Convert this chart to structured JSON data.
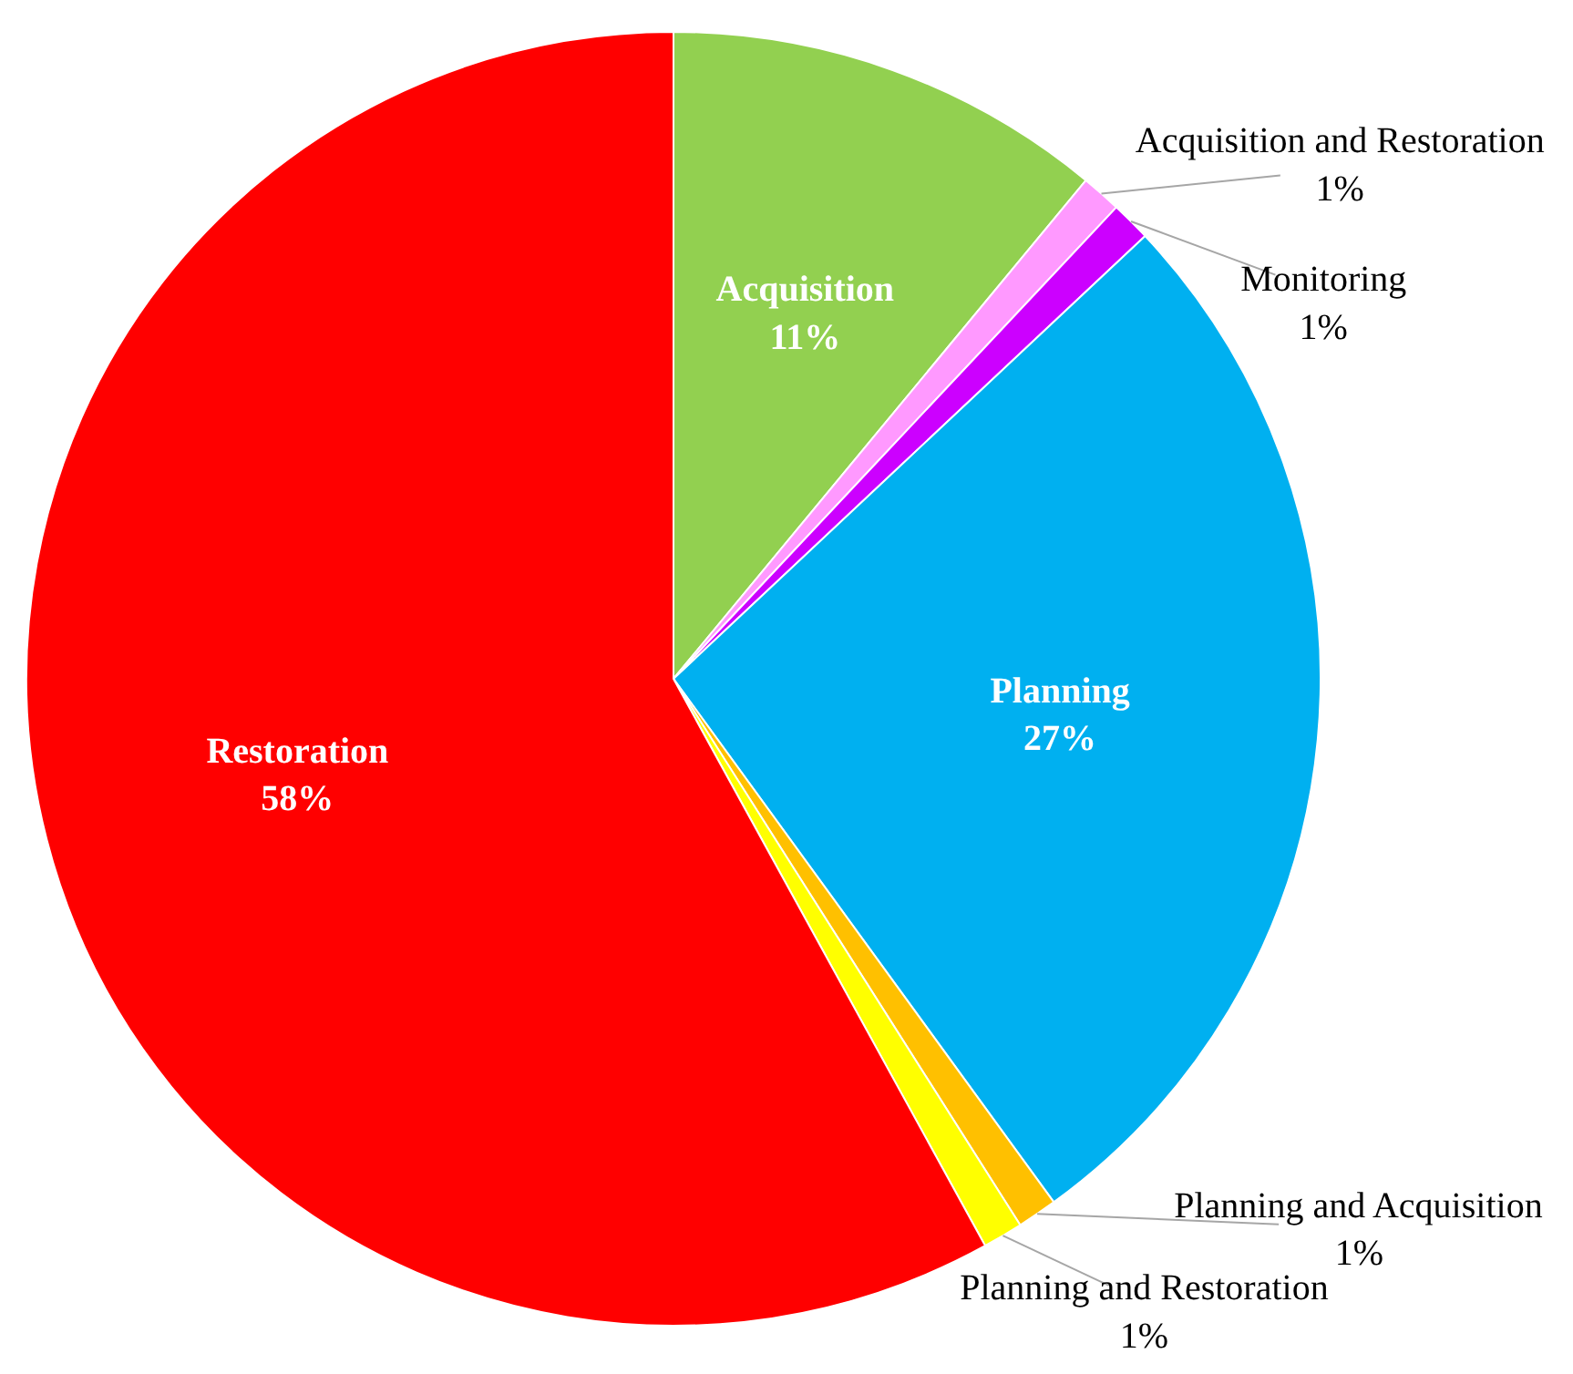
{
  "chart_data": {
    "type": "pie",
    "categories": [
      "Acquisition",
      "Acquisition and Restoration",
      "Monitoring",
      "Planning",
      "Planning and Acquisition",
      "Planning and Restoration",
      "Restoration"
    ],
    "values": [
      11,
      1,
      1,
      27,
      1,
      1,
      58
    ],
    "value_labels": [
      "11%",
      "1%",
      "1%",
      "27%",
      "1%",
      "1%",
      "58%"
    ],
    "colors": [
      "#92d050",
      "#ff99ff",
      "#cc00ff",
      "#00b0f0",
      "#ffc000",
      "#ffff00",
      "#ff0000"
    ]
  }
}
